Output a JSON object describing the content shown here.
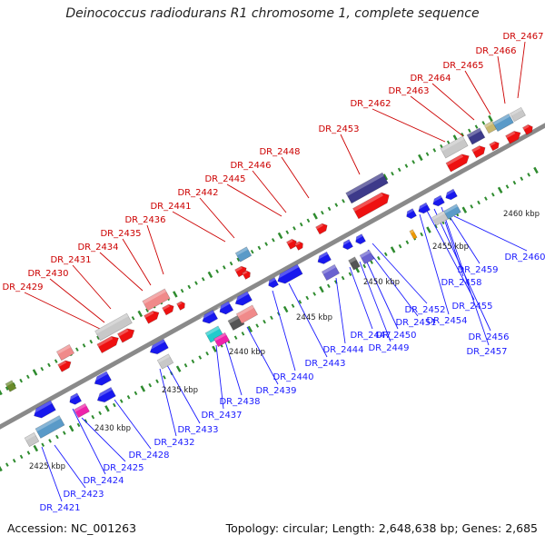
{
  "title": "Deinococcus radiodurans R1 chromosome 1, complete sequence",
  "footer": {
    "accession": "Accession: NC_001263",
    "topology": "Topology: circular; Length: 2,648,638 bp; Genes: 2,685"
  },
  "colors": {
    "forward_label": "#cc0000",
    "reverse_label": "#1a1aff",
    "backbone": "#8a8a8a",
    "tick": "#2e8b2e"
  },
  "scale_labels": [
    "2425 kbp",
    "2430 kbp",
    "2435 kbp",
    "2440 kbp",
    "2445 kbp",
    "2450 kbp",
    "2455 kbp",
    "2460 kbp"
  ],
  "genes_forward": [
    "DR_2429",
    "DR_2430",
    "DR_2431",
    "DR_2434",
    "DR_2435",
    "DR_2436",
    "DR_2441",
    "DR_2442",
    "DR_2445",
    "DR_2446",
    "DR_2448",
    "DR_2453",
    "DR_2462",
    "DR_2463",
    "DR_2464",
    "DR_2465",
    "DR_2466",
    "DR_2467"
  ],
  "genes_reverse": [
    "DR_2421",
    "DR_2423",
    "DR_2424",
    "DR_2425",
    "DR_2428",
    "DR_2432",
    "DR_2433",
    "DR_2437",
    "DR_2438",
    "DR_2439",
    "DR_2440",
    "DR_2443",
    "DR_2444",
    "DR_2447",
    "DR_2449",
    "DR_2450",
    "DR_2451",
    "DR_2452",
    "DR_2454",
    "DR_2455",
    "DR_2456",
    "DR_2457",
    "DR_2458",
    "DR_2459",
    "DR_2460"
  ]
}
